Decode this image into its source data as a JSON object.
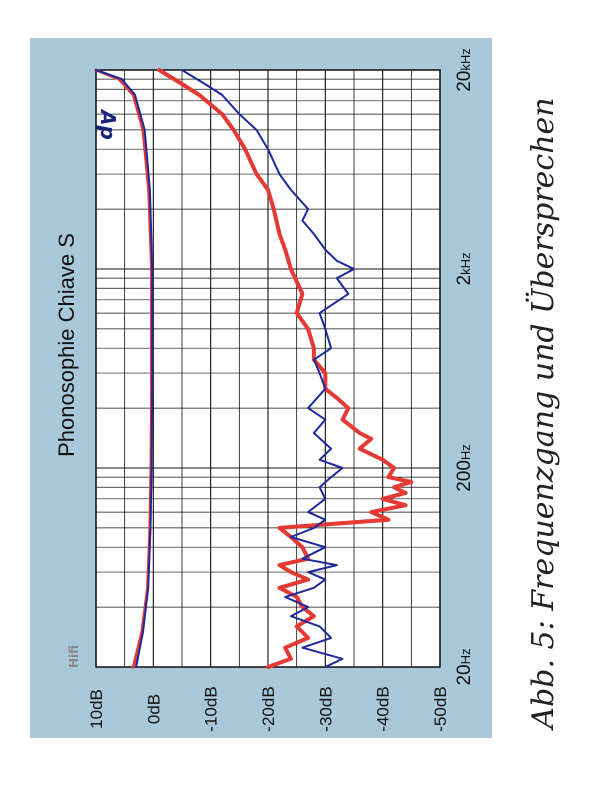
{
  "chart_data": {
    "type": "line",
    "title": "Phonosophie Chiave S",
    "caption": "Abb. 5: Frequenzgang und Übersprechen",
    "logo": "Hifi",
    "ap_mark": "Ap",
    "x_scale": "log",
    "xlim": [
      20,
      20000
    ],
    "ylim": [
      -50,
      10
    ],
    "grid": true,
    "x_tick_labels": [
      {
        "value": 20,
        "num": "20",
        "unit": "Hz"
      },
      {
        "value": 200,
        "num": "200",
        "unit": "Hz"
      },
      {
        "value": 2000,
        "num": "2",
        "unit": "kHz"
      },
      {
        "value": 20000,
        "num": "20",
        "unit": "kHz"
      }
    ],
    "y_tick_labels": [
      {
        "value": 10,
        "label": "10dB"
      },
      {
        "value": 0,
        "label": "0dB"
      },
      {
        "value": -10,
        "label": "-10dB"
      },
      {
        "value": -20,
        "label": "-20dB"
      },
      {
        "value": -30,
        "label": "-30dB"
      },
      {
        "value": -40,
        "label": "-40dB"
      },
      {
        "value": -50,
        "label": "-50dB"
      }
    ],
    "series": [
      {
        "role": "frequency-response",
        "color": "#e53935",
        "x": [
          20,
          30,
          50,
          100,
          200,
          500,
          1000,
          2000,
          5000,
          10000,
          15000,
          18000,
          20000
        ],
        "y": [
          3.5,
          2.0,
          1.0,
          0.6,
          0.4,
          0.3,
          0.3,
          0.3,
          0.8,
          1.8,
          3.5,
          6.0,
          10.0
        ]
      },
      {
        "role": "frequency-response",
        "color": "#1e2a9c",
        "x": [
          20,
          30,
          50,
          100,
          200,
          500,
          1000,
          2000,
          5000,
          10000,
          15000,
          18000,
          20000
        ],
        "y": [
          3.0,
          1.8,
          0.9,
          0.5,
          0.3,
          0.2,
          0.2,
          0.2,
          0.6,
          1.5,
          3.2,
          5.5,
          10.0
        ]
      },
      {
        "role": "crosstalk",
        "color": "#e53935",
        "x": [
          20,
          22,
          25,
          28,
          32,
          36,
          40,
          45,
          50,
          55,
          60,
          65,
          70,
          80,
          90,
          100,
          110,
          120,
          130,
          140,
          150,
          160,
          170,
          180,
          200,
          220,
          250,
          280,
          300,
          350,
          400,
          450,
          500,
          600,
          700,
          800,
          1000,
          1200,
          1500,
          2000,
          2500,
          3000,
          4000,
          5000,
          6000,
          8000,
          10000,
          12000,
          15000,
          17000,
          20000
        ],
        "y": [
          -20,
          -24,
          -23,
          -27,
          -25,
          -28,
          -26,
          -25,
          -22,
          -27,
          -24,
          -22,
          -27,
          -26,
          -24,
          -22,
          -41,
          -38,
          -44,
          -40,
          -44,
          -42,
          -45,
          -41,
          -42,
          -40,
          -36,
          -38,
          -36,
          -33,
          -34,
          -32,
          -30,
          -30,
          -28,
          -28,
          -27,
          -25,
          -26,
          -24,
          -23,
          -22,
          -21,
          -20,
          -18,
          -16,
          -14,
          -12,
          -8,
          -5,
          -1
        ]
      },
      {
        "role": "crosstalk",
        "color": "#1e2a9c",
        "x": [
          20,
          22,
          25,
          28,
          32,
          36,
          40,
          45,
          50,
          55,
          60,
          65,
          70,
          80,
          90,
          100,
          110,
          120,
          140,
          160,
          180,
          200,
          220,
          250,
          300,
          350,
          400,
          500,
          600,
          700,
          800,
          1000,
          1200,
          1500,
          1800,
          2000,
          2200,
          2500,
          3000,
          3500,
          4000,
          5000,
          6000,
          8000,
          10000,
          12000,
          15000,
          17000,
          20000
        ],
        "y": [
          -30,
          -33,
          -26,
          -31,
          -29,
          -24,
          -27,
          -23,
          -28,
          -30,
          -27,
          -32,
          -26,
          -30,
          -24,
          -28,
          -30,
          -27,
          -30,
          -29,
          -31,
          -33,
          -29,
          -31,
          -28,
          -30,
          -27,
          -30,
          -29,
          -28,
          -31,
          -30,
          -29,
          -34,
          -32,
          -35,
          -32,
          -30,
          -28,
          -26,
          -27,
          -24,
          -22,
          -20,
          -18,
          -15,
          -12,
          -9,
          -5
        ]
      }
    ]
  }
}
